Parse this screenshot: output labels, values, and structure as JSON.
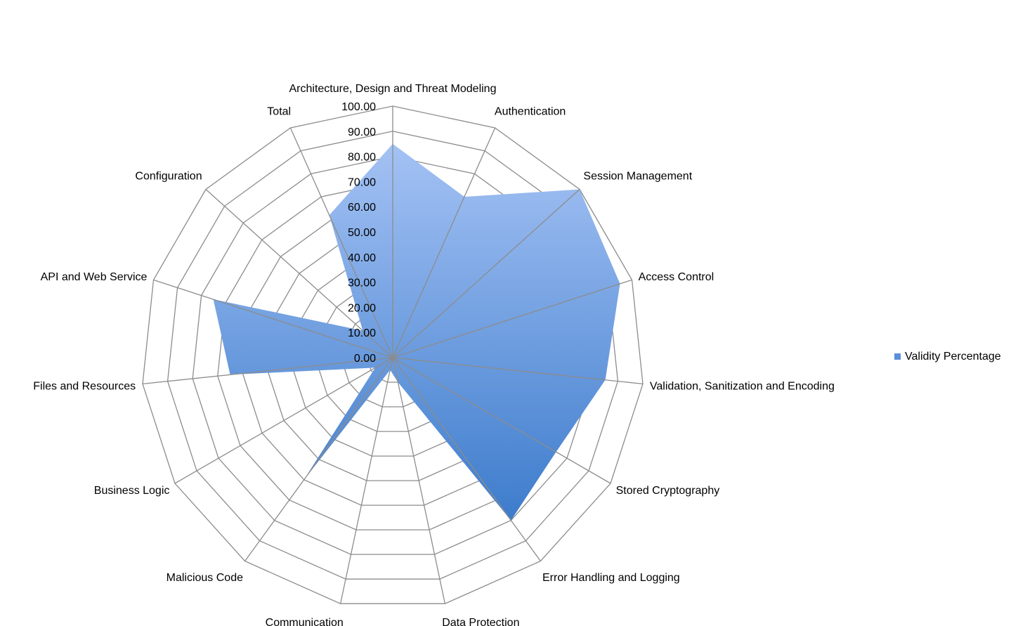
{
  "chart_data": {
    "type": "radar",
    "categories": [
      "Architecture, Design and Threat Modeling",
      "Authentication",
      "Session Management",
      "Access Control",
      "Validation, Sanitization and Encoding",
      "Stored Cryptography",
      "Error Handling and Logging",
      "Data Protection",
      "Communication",
      "Malicious Code",
      "Business Logic",
      "Files and Resources",
      "API and Web Service",
      "Configuration",
      "Total"
    ],
    "series": [
      {
        "name": "Validity Percentage",
        "values": [
          85,
          70,
          100,
          95,
          85,
          75,
          80,
          10,
          5,
          60,
          8,
          65,
          75,
          16,
          62
        ]
      }
    ],
    "tick_labels": [
      "0.00",
      "10.00",
      "20.00",
      "30.00",
      "40.00",
      "50.00",
      "60.00",
      "70.00",
      "80.00",
      "90.00",
      "100.00"
    ],
    "rlim": [
      0,
      100
    ],
    "grid": true,
    "legend_position": "right",
    "colors": {
      "series_top": "#a4c2f4",
      "series_bottom": "#3d7ccc",
      "grid": "#8c8c8c",
      "legend_marker": "#5a8fdb"
    }
  }
}
